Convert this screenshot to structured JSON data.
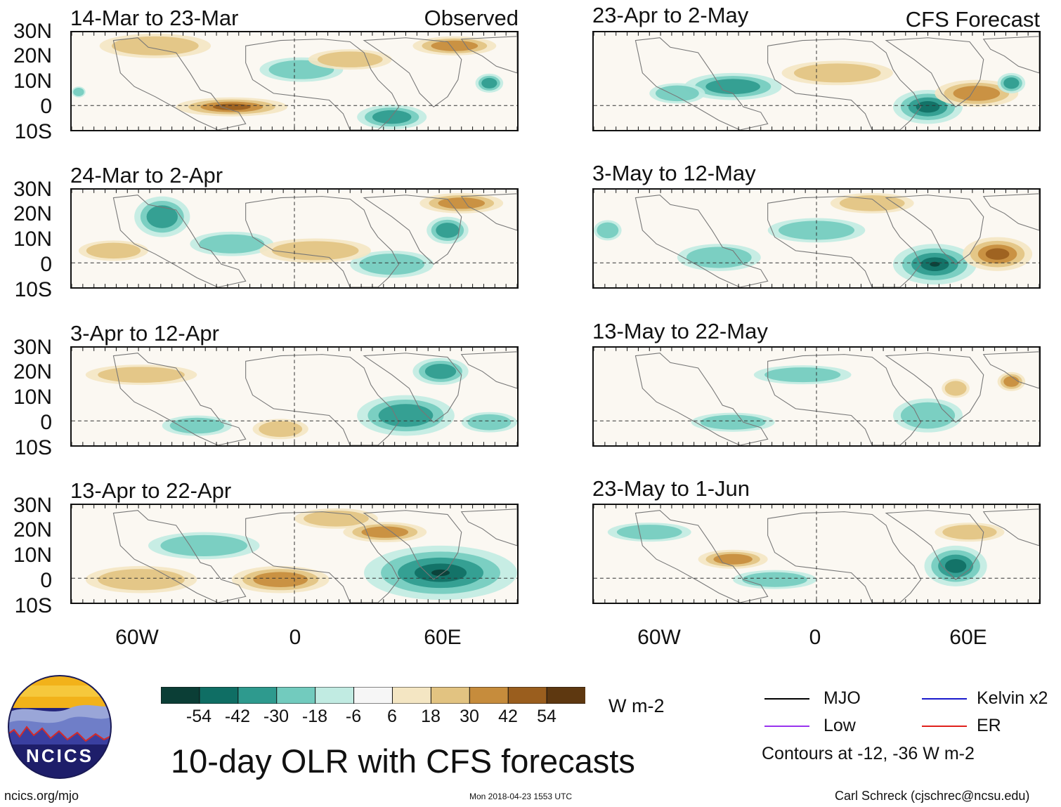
{
  "sections": {
    "left_tag": "Observed",
    "right_tag": "CFS Forecast"
  },
  "panels": [
    {
      "title": "14-Mar to 23-Mar"
    },
    {
      "title": "24-Mar to 2-Apr"
    },
    {
      "title": "3-Apr to 12-Apr"
    },
    {
      "title": "13-Apr to 22-Apr"
    },
    {
      "title": "23-Apr to 2-May"
    },
    {
      "title": "3-May to 12-May"
    },
    {
      "title": "13-May to 22-May"
    },
    {
      "title": "23-May to 1-Jun"
    }
  ],
  "axes": {
    "lat_labels": [
      "30N",
      "20N",
      "10N",
      "0",
      "10S"
    ],
    "lon_labels": [
      "60W",
      "0",
      "60E"
    ]
  },
  "colorbar": {
    "unit": "W m-2",
    "tick_labels": [
      "-54",
      "-42",
      "-30",
      "-18",
      "-6",
      "6",
      "18",
      "30",
      "42",
      "54"
    ],
    "colors": [
      "#0b3e36",
      "#0f6e64",
      "#2e9a8e",
      "#72cbbe",
      "#c1ebe2",
      "#f6f6f6",
      "#f4e6c3",
      "#e2c381",
      "#c68c3c",
      "#9a5e1e",
      "#5e3810"
    ]
  },
  "legend": {
    "items": [
      {
        "label": "MJO",
        "color": "#000000"
      },
      {
        "label": "Low",
        "color": "#9933ee"
      },
      {
        "label": "Kelvin x2",
        "color": "#1a1acc"
      },
      {
        "label": "ER",
        "color": "#e0201c"
      }
    ],
    "note": "Contours at -12, -36 W m-2"
  },
  "title": "10-day OLR with CFS forecasts",
  "logo_text": "NCICS",
  "footer": {
    "url": "ncics.org/mjo",
    "timestamp": "Mon 2018-04-23 1553 UTC",
    "credit": "Carl Schreck (cjschrec@ncsu.edu)"
  }
}
